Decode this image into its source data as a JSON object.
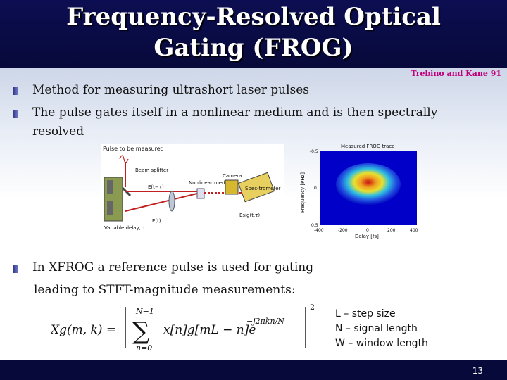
{
  "title": "Frequency-Resolved Optical Gating (FROG)",
  "citation": "Trebino and Kane 91",
  "bullets": [
    "Method for measuring ultrashort laser pulses",
    "The pulse gates itself in a nonlinear medium and is then spectrally resolved",
    "In XFROG a reference pulse is used for gating",
    "leading to STFT-magnitude measurements:"
  ],
  "setup_labels": {
    "pulse": "Pulse to be measured",
    "splitter": "Beam splitter",
    "camera": "Camera",
    "spectrometer": "Spec-trometer",
    "medium": "Nonlinear medium",
    "delay": "Variable delay, τ",
    "e_delayed": "E(t−τ)",
    "e_t": "E(t)",
    "e_sig": "Esig(t,τ)"
  },
  "frog_trace": {
    "title": "Measured FROG trace",
    "xlabel": "Delay [fs]",
    "ylabel": "Frequency [PHz]",
    "xticks": [
      "-400",
      "-200",
      "0",
      "200",
      "400"
    ],
    "yticks": [
      "-0.5",
      "0",
      "0.5"
    ]
  },
  "equation": {
    "lhs": "Xg(m, k) =",
    "sum_top": "N−1",
    "sum_bottom": "n=0",
    "body": "x[n]g[mL − n]e",
    "exponent": "−j2πkn/N",
    "power": "2"
  },
  "params": [
    "L – step size",
    "N – signal length",
    "W – window length"
  ],
  "page_number": "13"
}
